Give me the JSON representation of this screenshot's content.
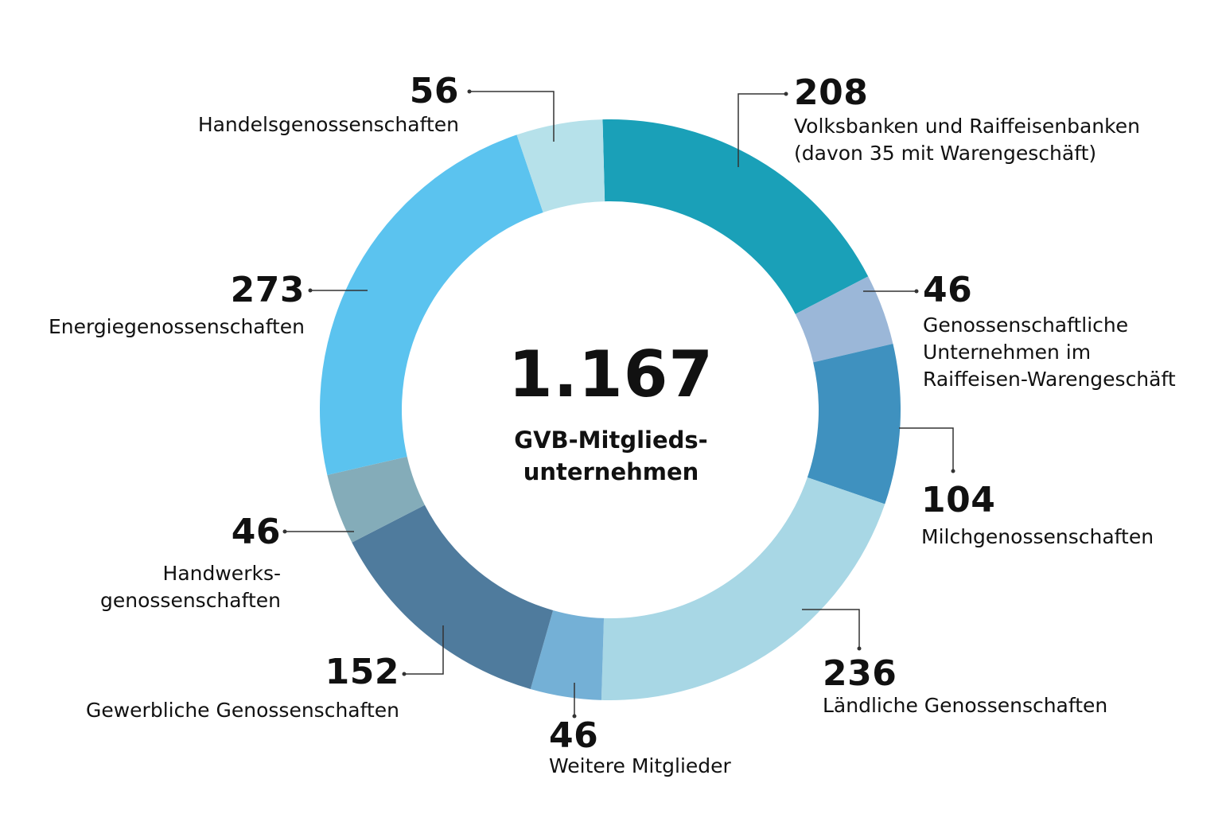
{
  "chart_data": {
    "type": "donut",
    "center": {
      "total": "1.167",
      "label": "GVB-Mitglieds-\nunternehmen"
    },
    "segments": [
      {
        "value": 208,
        "value_label": "208",
        "label": "Volksbanken und Raiffeisenbanken\n(davon 35 mit Warengeschäft)",
        "color": "#1aa0b8"
      },
      {
        "value": 46,
        "value_label": "46",
        "label": "Genossenschaftliche\nUnternehmen im\nRaiffeisen-Warengeschäft",
        "color": "#9bb7d8"
      },
      {
        "value": 104,
        "value_label": "104",
        "label": "Milchgenossenschaften",
        "color": "#3f91bf"
      },
      {
        "value": 236,
        "value_label": "236",
        "label": "Ländliche Genossenschaften",
        "color": "#a8d7e5"
      },
      {
        "value": 46,
        "value_label": "46",
        "label": "Weitere Mitglieder",
        "color": "#74b0d6"
      },
      {
        "value": 152,
        "value_label": "152",
        "label": "Gewerbliche Genossenschaften",
        "color": "#4f7b9d"
      },
      {
        "value": 46,
        "value_label": "46",
        "label": "Handwerks-\ngenossenschaften",
        "color": "#84acb9"
      },
      {
        "value": 273,
        "value_label": "273",
        "label": "Energiegenossenschaften",
        "color": "#5bc3ef"
      },
      {
        "value": 56,
        "value_label": "56",
        "label": "Handelsgenossenschaften",
        "color": "#b6e1ea"
      }
    ]
  }
}
